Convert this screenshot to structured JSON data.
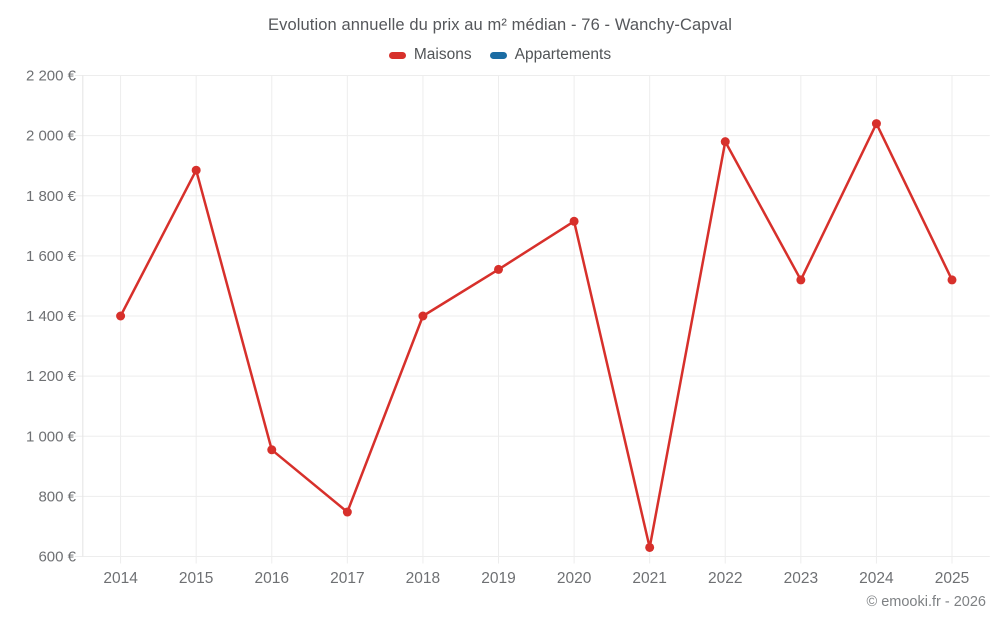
{
  "chart_data": {
    "type": "line",
    "title": "Evolution annuelle du prix au m² médian - 76 - Wanchy-Capval",
    "categories": [
      "2014",
      "2015",
      "2016",
      "2017",
      "2018",
      "2019",
      "2020",
      "2021",
      "2022",
      "2023",
      "2024",
      "2025"
    ],
    "series": [
      {
        "name": "Maisons",
        "color": "#d7302b",
        "values": [
          1400,
          1885,
          955,
          748,
          1400,
          1555,
          1715,
          630,
          1980,
          1520,
          2040,
          1520
        ]
      },
      {
        "name": "Appartements",
        "color": "#1b6ca3",
        "values": []
      }
    ],
    "ylabel": "",
    "xlabel": "",
    "ylim": [
      600,
      2200
    ],
    "y_ticks": [
      {
        "value": 600,
        "label": "600 €"
      },
      {
        "value": 800,
        "label": "800 €"
      },
      {
        "value": 1000,
        "label": "1 000 €"
      },
      {
        "value": 1200,
        "label": "1 200 €"
      },
      {
        "value": 1400,
        "label": "1 400 €"
      },
      {
        "value": 1600,
        "label": "1 600 €"
      },
      {
        "value": 1800,
        "label": "1 800 €"
      },
      {
        "value": 2000,
        "label": "2 000 €"
      },
      {
        "value": 2200,
        "label": "2 200 €"
      }
    ],
    "grid": true,
    "legend_position": "top-center"
  },
  "footer": {
    "copyright": "© emooki.fr - 2026"
  },
  "colors": {
    "grid_line": "#ededed",
    "axis_line": "#e3e3e3",
    "tick_label": "#6e7073",
    "title_text": "#55575b",
    "legend_text": "#515457",
    "footer_text": "#7e8184",
    "background": "#ffffff"
  }
}
